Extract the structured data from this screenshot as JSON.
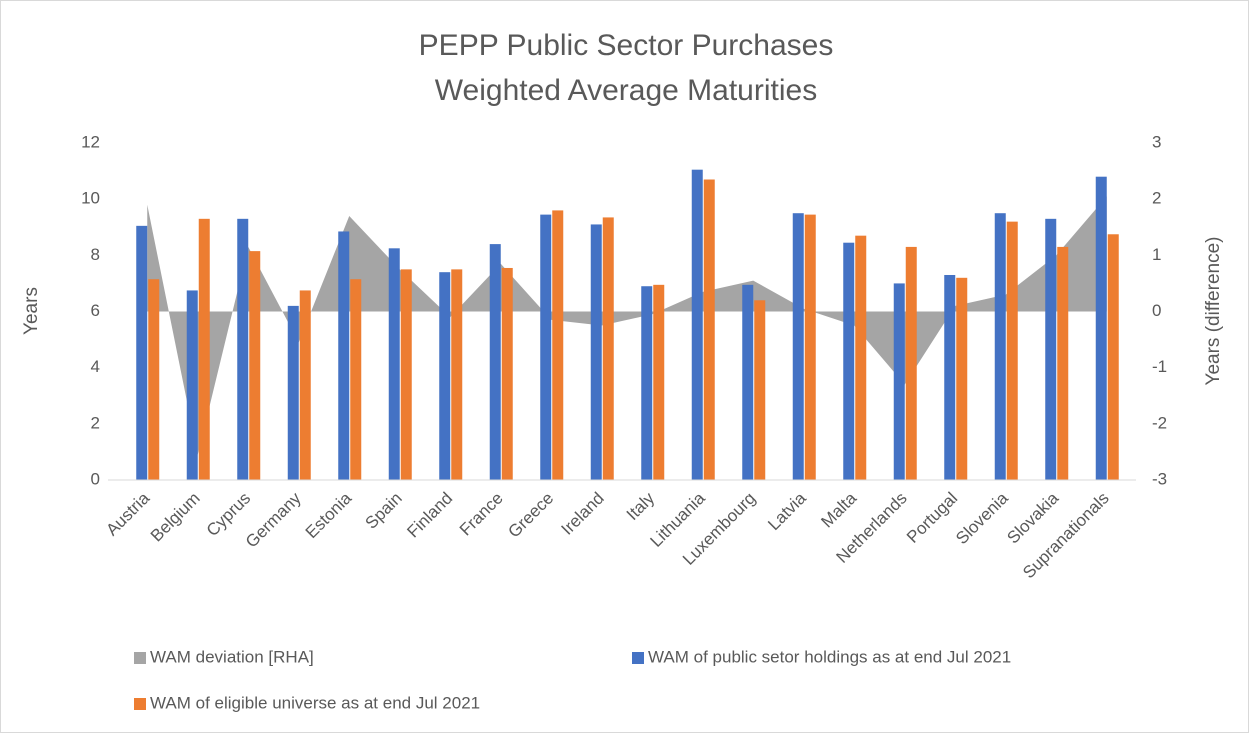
{
  "chart_data": {
    "type": "bar",
    "title": [
      "PEPP Public Sector Purchases",
      "Weighted Average Maturities"
    ],
    "y_label": "Years",
    "y2_label": "Years (difference)",
    "categories": [
      "Austria",
      "Belgium",
      "Cyprus",
      "Germany",
      "Estonia",
      "Spain",
      "Finland",
      "France",
      "Greece",
      "Ireland",
      "Italy",
      "Lithuania",
      "Luxembourg",
      "Latvia",
      "Malta",
      "Netherlands",
      "Portugal",
      "Slovenia",
      "Slovakia",
      "Supranationals"
    ],
    "series": [
      {
        "name": "WAM deviation [RHA]",
        "type": "area",
        "axis": "y2",
        "color": "#a5a5a5",
        "values": [
          1.9,
          -2.55,
          1.15,
          -0.55,
          1.7,
          0.75,
          -0.1,
          0.85,
          -0.15,
          -0.25,
          -0.05,
          0.35,
          0.55,
          0.05,
          -0.25,
          -1.3,
          0.1,
          0.3,
          1.0,
          2.05
        ]
      },
      {
        "name": "WAM of public setor holdings as at end Jul 2021",
        "type": "bar",
        "color": "#4472c4",
        "values": [
          9.05,
          6.75,
          9.3,
          6.2,
          8.85,
          8.25,
          7.4,
          8.4,
          9.45,
          9.1,
          6.9,
          11.05,
          6.95,
          9.5,
          8.45,
          7.0,
          7.3,
          9.5,
          9.3,
          10.8
        ]
      },
      {
        "name": "WAM of eligible universe as at end Jul 2021",
        "type": "bar",
        "color": "#ed7d31",
        "values": [
          7.15,
          9.3,
          8.15,
          6.75,
          7.15,
          7.5,
          7.5,
          7.55,
          9.6,
          9.35,
          6.95,
          10.7,
          6.4,
          9.45,
          8.7,
          8.3,
          7.2,
          9.2,
          8.3,
          8.75
        ]
      }
    ],
    "ylim": [
      0,
      12
    ],
    "yticks": [
      0,
      2,
      4,
      6,
      8,
      10,
      12
    ],
    "y2lim": [
      -3,
      3
    ],
    "y2ticks": [
      -3,
      -2,
      -1,
      0,
      1,
      2,
      3
    ],
    "legend": "bottom"
  }
}
